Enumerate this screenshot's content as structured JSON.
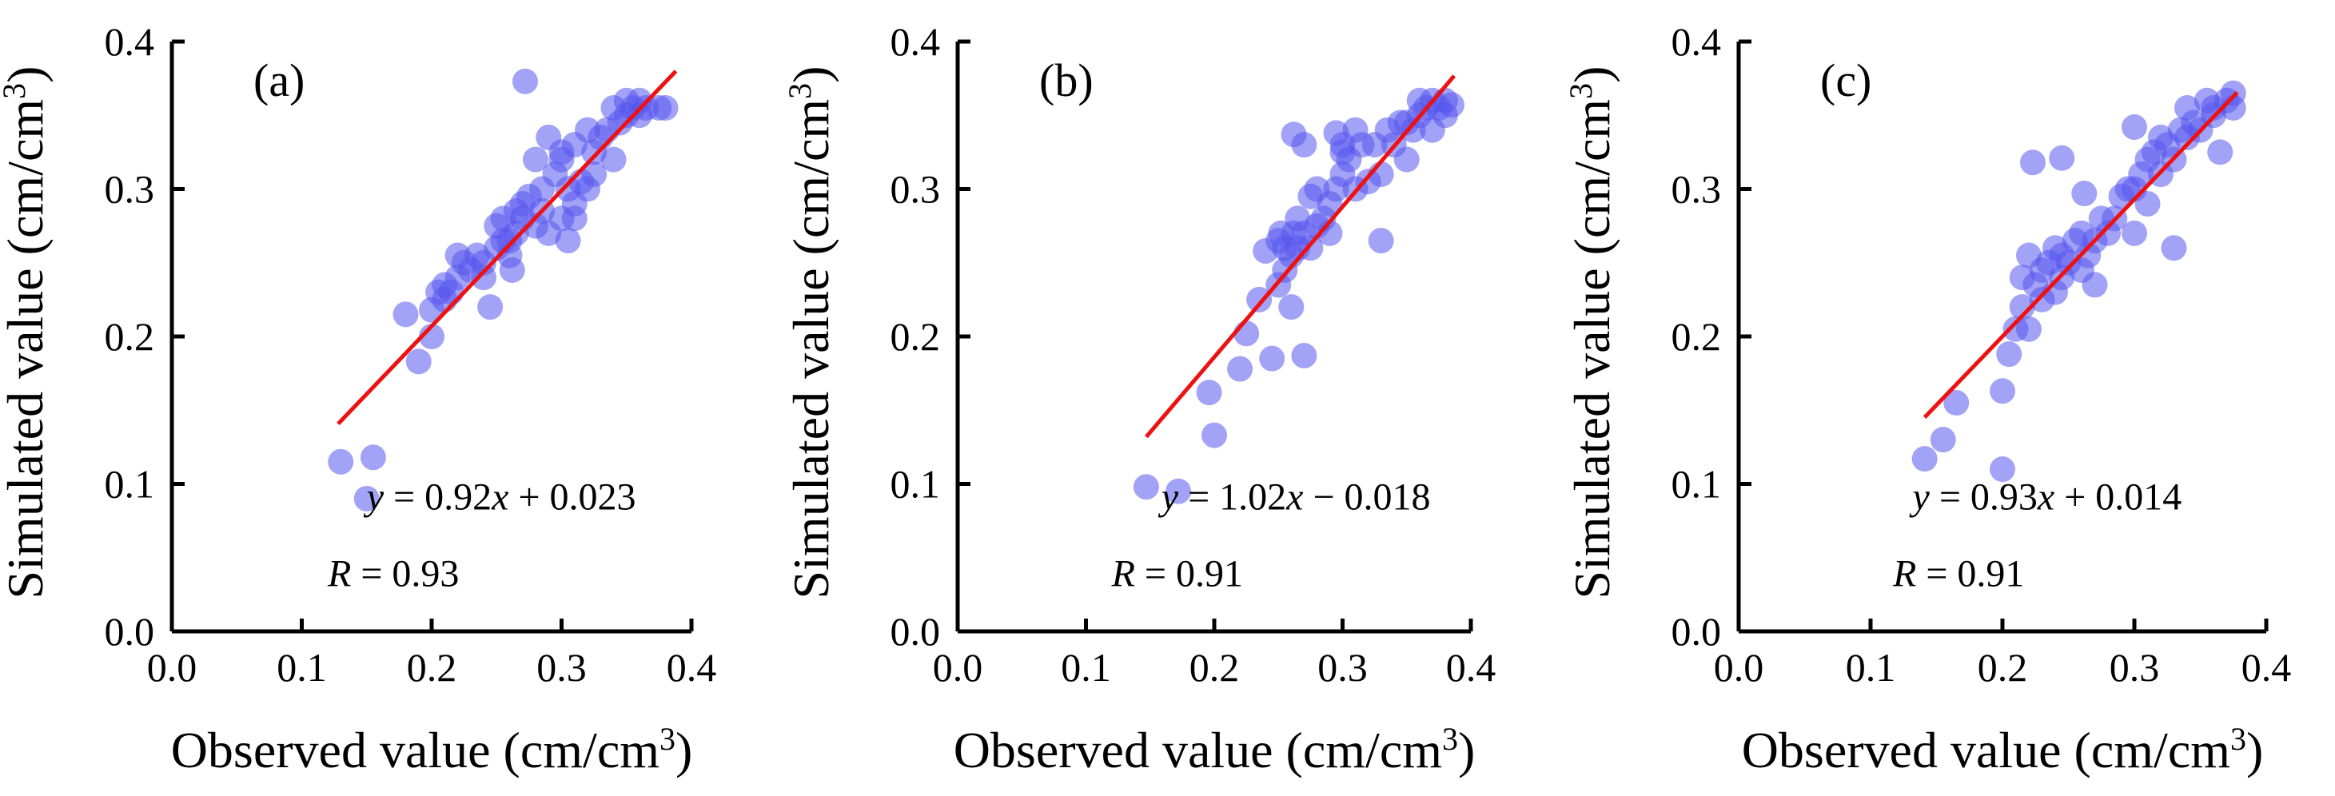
{
  "chart_data": [
    {
      "type": "scatter",
      "panel_label": "(a)",
      "xlabel": "Observed value (cm/cm³)",
      "ylabel": "Simulated value (cm/cm³)",
      "xlim": [
        0.0,
        0.4
      ],
      "ylim": [
        0.0,
        0.4
      ],
      "x_ticks": [
        "0.0",
        "0.1",
        "0.2",
        "0.3",
        "0.4"
      ],
      "y_ticks": [
        "0.0",
        "0.1",
        "0.2",
        "0.3",
        "0.4"
      ],
      "equation": {
        "y": "y",
        "eq_rest": " = 0.92",
        "x": "x",
        "tail": " + 0.023"
      },
      "r_text": {
        "r": "R",
        "rest": " = 0.93"
      },
      "fit": {
        "slope": 0.92,
        "intercept": 0.023,
        "x_range": [
          0.128,
          0.388
        ]
      },
      "points": {
        "x": [
          0.13,
          0.155,
          0.15,
          0.18,
          0.19,
          0.2,
          0.2,
          0.205,
          0.21,
          0.21,
          0.215,
          0.22,
          0.22,
          0.225,
          0.23,
          0.235,
          0.24,
          0.24,
          0.245,
          0.25,
          0.25,
          0.255,
          0.26,
          0.26,
          0.262,
          0.265,
          0.265,
          0.27,
          0.27,
          0.275,
          0.28,
          0.28,
          0.285,
          0.29,
          0.29,
          0.295,
          0.3,
          0.3,
          0.305,
          0.305,
          0.31,
          0.31,
          0.315,
          0.32,
          0.32,
          0.325,
          0.325,
          0.33,
          0.335,
          0.34,
          0.34,
          0.345,
          0.35,
          0.35,
          0.355,
          0.36,
          0.36,
          0.365,
          0.375,
          0.38,
          0.272,
          0.255,
          0.31,
          0.3,
          0.285
        ],
        "y": [
          0.115,
          0.118,
          0.09,
          0.215,
          0.183,
          0.2,
          0.218,
          0.23,
          0.225,
          0.235,
          0.23,
          0.24,
          0.255,
          0.25,
          0.245,
          0.255,
          0.25,
          0.24,
          0.22,
          0.26,
          0.275,
          0.28,
          0.265,
          0.255,
          0.245,
          0.27,
          0.285,
          0.28,
          0.29,
          0.295,
          0.275,
          0.32,
          0.3,
          0.27,
          0.335,
          0.31,
          0.28,
          0.32,
          0.265,
          0.3,
          0.29,
          0.33,
          0.305,
          0.3,
          0.34,
          0.31,
          0.325,
          0.335,
          0.34,
          0.32,
          0.355,
          0.345,
          0.35,
          0.36,
          0.355,
          0.35,
          0.36,
          0.355,
          0.355,
          0.355,
          0.373,
          0.265,
          0.28,
          0.325,
          0.285
        ]
      }
    },
    {
      "type": "scatter",
      "panel_label": "(b)",
      "xlabel": "Observed value (cm/cm³)",
      "ylabel": "Simulated value (cm/cm³)",
      "xlim": [
        0.0,
        0.4
      ],
      "ylim": [
        0.0,
        0.4
      ],
      "x_ticks": [
        "0.0",
        "0.1",
        "0.2",
        "0.3",
        "0.4"
      ],
      "y_ticks": [
        "0.0",
        "0.1",
        "0.2",
        "0.3",
        "0.4"
      ],
      "equation": {
        "y": "y",
        "eq_rest": " = 1.02",
        "x": "x",
        "tail": " − 0.018"
      },
      "r_text": {
        "r": "R",
        "rest": " = 0.91"
      },
      "fit": {
        "slope": 1.02,
        "intercept": -0.018,
        "x_range": [
          0.147,
          0.387
        ]
      },
      "points": {
        "x": [
          0.147,
          0.172,
          0.2,
          0.196,
          0.22,
          0.225,
          0.235,
          0.24,
          0.245,
          0.25,
          0.25,
          0.252,
          0.255,
          0.255,
          0.26,
          0.26,
          0.262,
          0.265,
          0.265,
          0.27,
          0.27,
          0.275,
          0.275,
          0.28,
          0.28,
          0.285,
          0.29,
          0.29,
          0.295,
          0.3,
          0.3,
          0.305,
          0.31,
          0.31,
          0.315,
          0.32,
          0.325,
          0.33,
          0.33,
          0.335,
          0.34,
          0.345,
          0.35,
          0.35,
          0.355,
          0.36,
          0.36,
          0.365,
          0.37,
          0.37,
          0.375,
          0.38,
          0.38,
          0.385,
          0.27,
          0.295,
          0.3,
          0.262
        ],
        "y": [
          0.098,
          0.095,
          0.133,
          0.162,
          0.178,
          0.202,
          0.225,
          0.258,
          0.185,
          0.235,
          0.265,
          0.27,
          0.245,
          0.26,
          0.22,
          0.255,
          0.27,
          0.28,
          0.26,
          0.187,
          0.27,
          0.295,
          0.26,
          0.275,
          0.3,
          0.28,
          0.29,
          0.27,
          0.3,
          0.33,
          0.31,
          0.32,
          0.3,
          0.34,
          0.33,
          0.305,
          0.33,
          0.265,
          0.31,
          0.34,
          0.33,
          0.345,
          0.32,
          0.345,
          0.34,
          0.35,
          0.36,
          0.355,
          0.34,
          0.36,
          0.355,
          0.35,
          0.36,
          0.357,
          0.33,
          0.338,
          0.325,
          0.337
        ]
      }
    },
    {
      "type": "scatter",
      "panel_label": "(c)",
      "xlabel": "Observed value (cm/cm³)",
      "ylabel": "Simulated value (cm/cm³)",
      "xlim": [
        0.0,
        0.4
      ],
      "ylim": [
        0.0,
        0.4
      ],
      "x_ticks": [
        "0.0",
        "0.1",
        "0.2",
        "0.3",
        "0.4"
      ],
      "y_ticks": [
        "0.0",
        "0.1",
        "0.2",
        "0.3",
        "0.4"
      ],
      "equation": {
        "y": "y",
        "eq_rest": " = 0.93",
        "x": "x",
        "tail": " + 0.014"
      },
      "r_text": {
        "r": "R",
        "rest": " = 0.91"
      },
      "fit": {
        "slope": 0.93,
        "intercept": 0.014,
        "x_range": [
          0.141,
          0.378
        ]
      },
      "points": {
        "x": [
          0.141,
          0.155,
          0.165,
          0.2,
          0.2,
          0.205,
          0.21,
          0.215,
          0.22,
          0.22,
          0.225,
          0.23,
          0.23,
          0.235,
          0.24,
          0.24,
          0.245,
          0.245,
          0.25,
          0.255,
          0.26,
          0.26,
          0.265,
          0.27,
          0.27,
          0.275,
          0.28,
          0.285,
          0.29,
          0.295,
          0.3,
          0.3,
          0.305,
          0.31,
          0.31,
          0.315,
          0.32,
          0.32,
          0.325,
          0.33,
          0.33,
          0.335,
          0.34,
          0.34,
          0.345,
          0.35,
          0.355,
          0.36,
          0.36,
          0.365,
          0.37,
          0.375,
          0.375,
          0.223,
          0.245,
          0.3,
          0.262,
          0.215
        ],
        "y": [
          0.117,
          0.13,
          0.155,
          0.11,
          0.163,
          0.188,
          0.205,
          0.22,
          0.205,
          0.255,
          0.235,
          0.225,
          0.245,
          0.25,
          0.23,
          0.26,
          0.24,
          0.255,
          0.25,
          0.265,
          0.245,
          0.27,
          0.255,
          0.235,
          0.265,
          0.28,
          0.27,
          0.28,
          0.295,
          0.3,
          0.27,
          0.3,
          0.31,
          0.29,
          0.32,
          0.325,
          0.31,
          0.335,
          0.33,
          0.26,
          0.32,
          0.34,
          0.335,
          0.355,
          0.345,
          0.34,
          0.36,
          0.35,
          0.355,
          0.325,
          0.36,
          0.365,
          0.355,
          0.318,
          0.321,
          0.342,
          0.297,
          0.24
        ]
      }
    }
  ]
}
